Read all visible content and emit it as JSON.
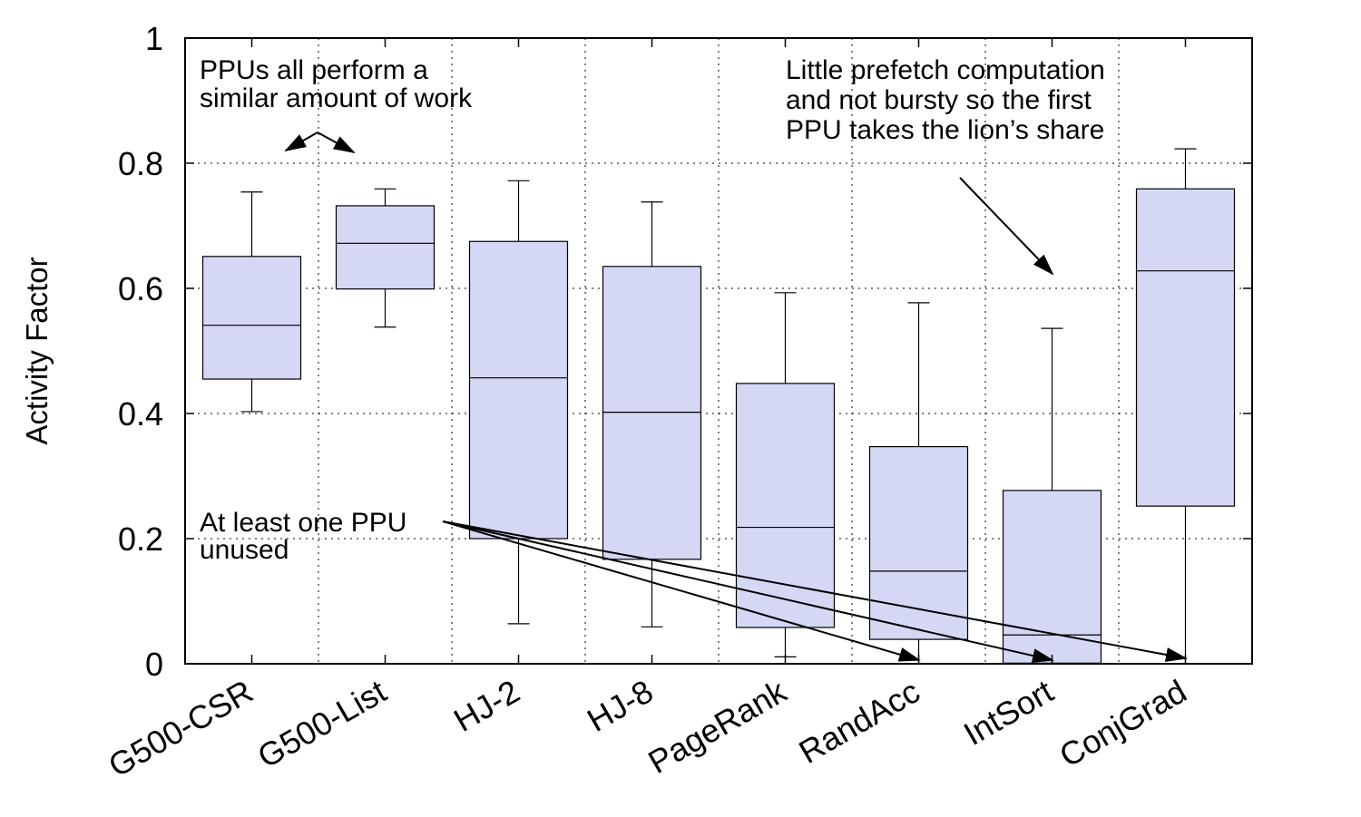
{
  "chart_data": {
    "type": "box",
    "title": "",
    "xlabel": "",
    "ylabel": "Activity Factor",
    "ylim": [
      0,
      1
    ],
    "yticks": [
      {
        "value": 0,
        "label": "0"
      },
      {
        "value": 0.2,
        "label": "0.2"
      },
      {
        "value": 0.4,
        "label": "0.4"
      },
      {
        "value": 0.6,
        "label": "0.6"
      },
      {
        "value": 0.8,
        "label": "0.8"
      },
      {
        "value": 1,
        "label": "1"
      }
    ],
    "grid": true,
    "box_color": "#d4d8f4",
    "categories": [
      "G500-CSR",
      "G500-List",
      "HJ-2",
      "HJ-8",
      "PageRank",
      "RandAcc",
      "IntSort",
      "ConjGrad"
    ],
    "boxes": [
      {
        "category": "G500-CSR",
        "min": 0.403,
        "q1": 0.455,
        "median": 0.541,
        "q3": 0.651,
        "max": 0.754
      },
      {
        "category": "G500-List",
        "min": 0.538,
        "q1": 0.599,
        "median": 0.672,
        "q3": 0.732,
        "max": 0.759
      },
      {
        "category": "HJ-2",
        "min": 0.064,
        "q1": 0.2,
        "median": 0.457,
        "q3": 0.675,
        "max": 0.772
      },
      {
        "category": "HJ-8",
        "min": 0.059,
        "q1": 0.167,
        "median": 0.402,
        "q3": 0.635,
        "max": 0.738
      },
      {
        "category": "PageRank",
        "min": 0.011,
        "q1": 0.058,
        "median": 0.218,
        "q3": 0.448,
        "max": 0.593
      },
      {
        "category": "RandAcc",
        "min": 0.0,
        "q1": 0.039,
        "median": 0.148,
        "q3": 0.347,
        "max": 0.577
      },
      {
        "category": "IntSort",
        "min": 0.0,
        "q1": 0.001,
        "median": 0.046,
        "q3": 0.277,
        "max": 0.536
      },
      {
        "category": "ConjGrad",
        "min": 0.0,
        "q1": 0.252,
        "median": 0.628,
        "q3": 0.759,
        "max": 0.823
      }
    ],
    "annotations": [
      {
        "lines": [
          "PPUs all perform a",
          "similar amount of work"
        ],
        "arrow_targets": [
          "G500-CSR",
          "G500-List"
        ]
      },
      {
        "lines": [
          "Little prefetch computation",
          "and not bursty so the first",
          "PPU takes the lion’s share"
        ],
        "arrow_targets": [
          "IntSort"
        ]
      },
      {
        "lines": [
          "At least one PPU",
          "unused"
        ],
        "arrow_targets": [
          "RandAcc",
          "IntSort",
          "ConjGrad"
        ]
      }
    ]
  }
}
